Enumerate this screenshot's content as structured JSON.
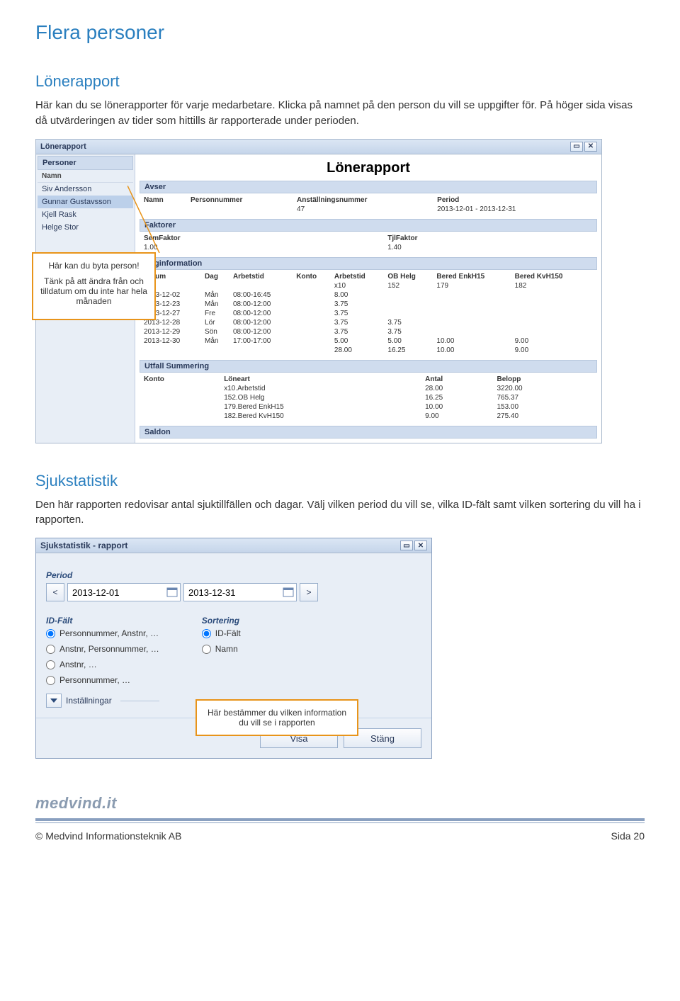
{
  "page": {
    "title": "Flera personer",
    "footer_brand": "medvind.it",
    "footer_left": "© Medvind Informationsteknik AB",
    "footer_right": "Sida 20"
  },
  "lonerapport": {
    "heading": "Lönerapport",
    "intro": "Här kan du se lönerapporter för varje medarbetare. Klicka på namnet på den person du vill se uppgifter för. På höger sida visas då utvärderingen av tider som hittills är rapporterade under perioden.",
    "window_title": "Lönerapport",
    "side_header": "Personer",
    "side_col": "Namn",
    "persons": [
      "Siv Andersson",
      "Gunnar Gustavsson",
      "Kjell Rask",
      "Helge Stor"
    ],
    "report_title": "Lönerapport",
    "avser_label": "Avser",
    "avser_cols": [
      "Namn",
      "Personnummer",
      "Anställningsnummer",
      "Period"
    ],
    "avser_vals": [
      "",
      "",
      "47",
      "2013-12-01 - 2013-12-31"
    ],
    "faktorer_label": "Faktorer",
    "faktorer_cols": [
      "SemFaktor",
      "TjlFaktor"
    ],
    "faktorer_vals": [
      "1.00",
      "1.40"
    ],
    "dag_label": "Daginformation",
    "dag_cols": [
      "Datum",
      "Dag",
      "Arbetstid",
      "Konto",
      "Arbetstid",
      "OB Helg",
      "Bered EnkH15",
      "Bered KvH150"
    ],
    "dag_header2": [
      "",
      "",
      "",
      "",
      "x10",
      "152",
      "179",
      "182"
    ],
    "dag_rows": [
      [
        "2013-12-02",
        "Mån",
        "08:00-16:45",
        "",
        "8.00",
        "",
        "",
        ""
      ],
      [
        "2013-12-23",
        "Mån",
        "08:00-12:00",
        "",
        "3.75",
        "",
        "",
        ""
      ],
      [
        "2013-12-27",
        "Fre",
        "08:00-12:00",
        "",
        "3.75",
        "",
        "",
        ""
      ],
      [
        "2013-12-28",
        "Lör",
        "08:00-12:00",
        "",
        "3.75",
        "3.75",
        "",
        ""
      ],
      [
        "2013-12-29",
        "Sön",
        "08:00-12:00",
        "",
        "3.75",
        "3.75",
        "",
        ""
      ],
      [
        "2013-12-30",
        "Mån",
        "17:00-17:00",
        "",
        "5.00",
        "5.00",
        "10.00",
        "9.00"
      ],
      [
        "",
        "",
        "",
        "",
        "28.00",
        "16.25",
        "10.00",
        "9.00"
      ]
    ],
    "utfall_label": "Utfall Summering",
    "utfall_cols": [
      "Konto",
      "Löneart",
      "Antal",
      "Belopp"
    ],
    "utfall_rows": [
      [
        "",
        "x10.Arbetstid",
        "28.00",
        "3220.00"
      ],
      [
        "",
        "152.OB Helg",
        "16.25",
        "765.37"
      ],
      [
        "",
        "179.Bered EnkH15",
        "10.00",
        "153.00"
      ],
      [
        "",
        "182.Bered KvH150",
        "9.00",
        "275.40"
      ]
    ],
    "saldon_label": "Saldon",
    "callout_l1": "Här kan du byta person!",
    "callout_l2": "Tänk på att ändra från och tilldatum om du inte har hela månaden"
  },
  "sjuk": {
    "heading": "Sjukstatistik",
    "intro": "Den här rapporten redovisar antal sjuktillfällen och dagar. Välj vilken period du vill se, vilka ID-fält samt vilken sortering du vill ha i rapporten.",
    "window_title": "Sjukstatistik - rapport",
    "period_label": "Period",
    "date_from": "2013-12-01",
    "date_to": "2013-12-31",
    "idfalt_label": "ID-Fält",
    "sortering_label": "Sortering",
    "id_opts": [
      "Personnummer, Anstnr, …",
      "Anstnr, Personnummer, …",
      "Anstnr, …",
      "Personnummer, …"
    ],
    "sort_opts": [
      "ID-Fält",
      "Namn"
    ],
    "settings_label": "Inställningar",
    "btn_visa": "Visa",
    "btn_stang": "Stäng",
    "callout": "Här bestämmer du vilken information du vill se i rapporten"
  }
}
